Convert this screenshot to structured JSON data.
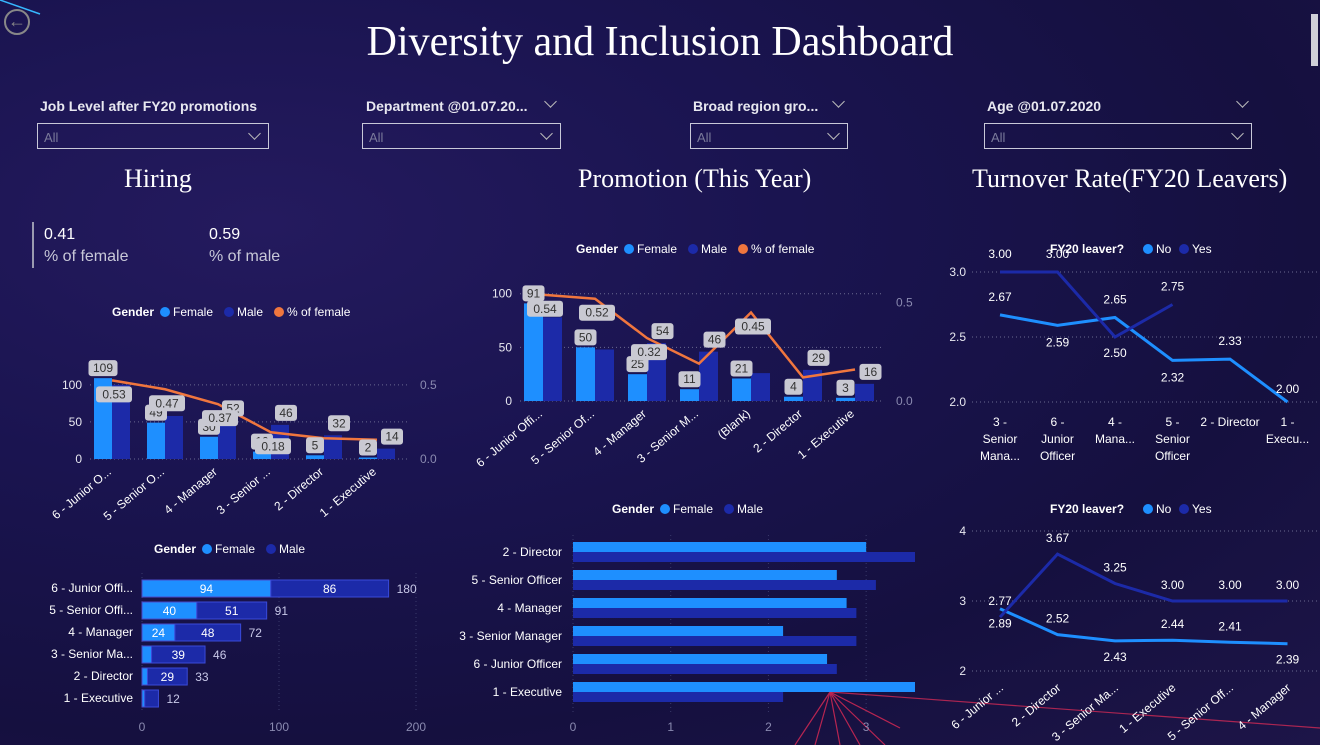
{
  "title": "Diversity and Inclusion Dashboard",
  "filters": [
    {
      "label": "Job Level after FY20 promotions",
      "value": "All"
    },
    {
      "label": "Department @01.07.20...",
      "value": "All"
    },
    {
      "label": "Broad region gro...",
      "value": "All"
    },
    {
      "label": "Age @01.07.2020",
      "value": "All"
    }
  ],
  "sections": {
    "hiring": "Hiring",
    "promotion": "Promotion (This Year)",
    "turnover": "Turnover Rate(FY20 Leavers)"
  },
  "cards": [
    {
      "value": "0.41",
      "label": "% of female"
    },
    {
      "value": "0.59",
      "label": "% of male"
    }
  ],
  "colors": {
    "female": "#1e8fff",
    "male": "#1c2aa8",
    "pct": "#f0763e",
    "no": "#1e8fff",
    "yes": "#1c2aa8"
  },
  "chart_data": [
    {
      "id": "hiring-combo",
      "type": "bar",
      "legend_title": "Gender",
      "legend": [
        "Female",
        "Male",
        "% of female"
      ],
      "categories": [
        "6 - Junior O...",
        "5 - Senior O...",
        "4 - Manager",
        "3 - Senior ...",
        "2 - Director",
        "1 - Executive"
      ],
      "series": [
        {
          "name": "Female",
          "values": [
            109,
            49,
            30,
            10,
            5,
            2
          ]
        },
        {
          "name": "Male",
          "values": [
            100,
            58,
            52,
            46,
            32,
            14
          ]
        },
        {
          "name": "% of female",
          "values": [
            0.53,
            0.47,
            0.37,
            0.18,
            0.14,
            0.13
          ]
        }
      ],
      "labels": {
        "bar": [
          [
            "109",
            "49",
            "30",
            "10",
            "5",
            "2"
          ],
          [
            "",
            "",
            "52",
            "46",
            "32",
            "14"
          ]
        ],
        "line": [
          "0.53",
          "0.47",
          "0.37",
          "0.18",
          "",
          ""
        ]
      },
      "y_ticks": [
        "0",
        "50",
        "100"
      ],
      "y2_ticks": [
        "0.0",
        "0.5"
      ],
      "ylim": [
        0,
        120
      ],
      "y2lim": [
        0,
        0.6
      ]
    },
    {
      "id": "promotion-combo",
      "type": "bar",
      "legend_title": "Gender",
      "legend": [
        "Female",
        "Male",
        "% of female"
      ],
      "categories": [
        "6 - Junior Offi...",
        "5 - Senior Of...",
        "4 - Manager",
        "3 - Senior M...",
        "(Blank)",
        "2 - Director",
        "1 - Executive"
      ],
      "series": [
        {
          "name": "Female",
          "values": [
            91,
            50,
            25,
            11,
            21,
            4,
            3
          ]
        },
        {
          "name": "Male",
          "values": [
            78,
            48,
            54,
            46,
            26,
            29,
            16
          ]
        },
        {
          "name": "% of female",
          "values": [
            0.54,
            0.52,
            0.32,
            0.19,
            0.45,
            0.12,
            0.16
          ]
        }
      ],
      "labels": {
        "bar": [
          [
            "91",
            "50",
            "25",
            "11",
            "21",
            "4",
            "3"
          ],
          [
            "",
            "",
            "54",
            "46",
            "",
            "29",
            "16"
          ]
        ],
        "line": [
          "0.54",
          "0.52",
          "0.32",
          "",
          "0.45",
          "",
          ""
        ]
      },
      "y_ticks": [
        "0",
        "50",
        "100"
      ],
      "y2_ticks": [
        "0.0",
        "0.5"
      ],
      "ylim": [
        0,
        110
      ],
      "y2lim": [
        0,
        0.6
      ]
    },
    {
      "id": "turnover-line-1",
      "type": "line",
      "legend_title": "FY20 leaver?",
      "legend": [
        "No",
        "Yes"
      ],
      "categories": [
        "3 - Senior Mana...",
        "6 - Junior Officer",
        "4 - Mana...",
        "5 - Senior Officer",
        "2 - Director",
        "1 - Execu..."
      ],
      "series": [
        {
          "name": "No",
          "values": [
            2.67,
            2.59,
            2.65,
            2.32,
            2.33,
            2.0
          ]
        },
        {
          "name": "Yes",
          "values": [
            3.0,
            3.0,
            2.5,
            2.75,
            null,
            null
          ]
        }
      ],
      "y_ticks": [
        "2.0",
        "2.5",
        "3.0"
      ],
      "ylim": [
        2.0,
        3.0
      ]
    },
    {
      "id": "turnover-line-2",
      "type": "line",
      "legend_title": "FY20 leaver?",
      "legend": [
        "No",
        "Yes"
      ],
      "categories": [
        "6 - Junior ...",
        "2 - Director",
        "3 - Senior Ma...",
        "1 - Executive",
        "5 - Senior Off...",
        "4 - Manager"
      ],
      "series": [
        {
          "name": "No",
          "values": [
            2.89,
            2.52,
            2.43,
            2.44,
            2.41,
            2.39
          ]
        },
        {
          "name": "Yes",
          "values": [
            2.77,
            3.67,
            3.25,
            3.0,
            3.0,
            3.0
          ]
        }
      ],
      "y_ticks": [
        "2",
        "3",
        "4"
      ],
      "ylim": [
        2,
        4
      ]
    },
    {
      "id": "hiring-stacked",
      "type": "bar",
      "orientation": "horizontal",
      "stacked": true,
      "legend_title": "Gender",
      "legend": [
        "Female",
        "Male"
      ],
      "categories": [
        "6 - Junior Offi...",
        "5 - Senior Offi...",
        "4 - Manager",
        "3 - Senior Ma...",
        "2 - Director",
        "1 - Executive"
      ],
      "series": [
        {
          "name": "Female",
          "values": [
            94,
            40,
            24,
            7,
            4,
            2
          ]
        },
        {
          "name": "Male",
          "values": [
            86,
            51,
            48,
            39,
            29,
            10
          ]
        }
      ],
      "labels": {
        "female": [
          "94",
          "40",
          "24",
          "",
          "",
          ""
        ],
        "male": [
          "86",
          "51",
          "48",
          "39",
          "29",
          ""
        ],
        "total": [
          "180",
          "91",
          "72",
          "46",
          "33",
          "12"
        ]
      },
      "x_ticks": [
        "0",
        "100",
        "200"
      ],
      "xlim": [
        0,
        200
      ]
    },
    {
      "id": "promotion-hbar",
      "type": "bar",
      "orientation": "horizontal",
      "legend_title": "Gender",
      "legend": [
        "Female",
        "Male"
      ],
      "categories": [
        "2 - Director",
        "5 - Senior Officer",
        "4 - Manager",
        "3 - Senior Manager",
        "6 - Junior Officer",
        "1 - Executive"
      ],
      "series": [
        {
          "name": "Female",
          "values": [
            3.0,
            2.7,
            2.8,
            2.15,
            2.6,
            3.5
          ]
        },
        {
          "name": "Male",
          "values": [
            3.5,
            3.1,
            2.9,
            2.9,
            2.7,
            2.15
          ]
        }
      ],
      "x_ticks": [
        "0",
        "1",
        "2",
        "3"
      ],
      "xlim": [
        0,
        3.5
      ]
    }
  ]
}
